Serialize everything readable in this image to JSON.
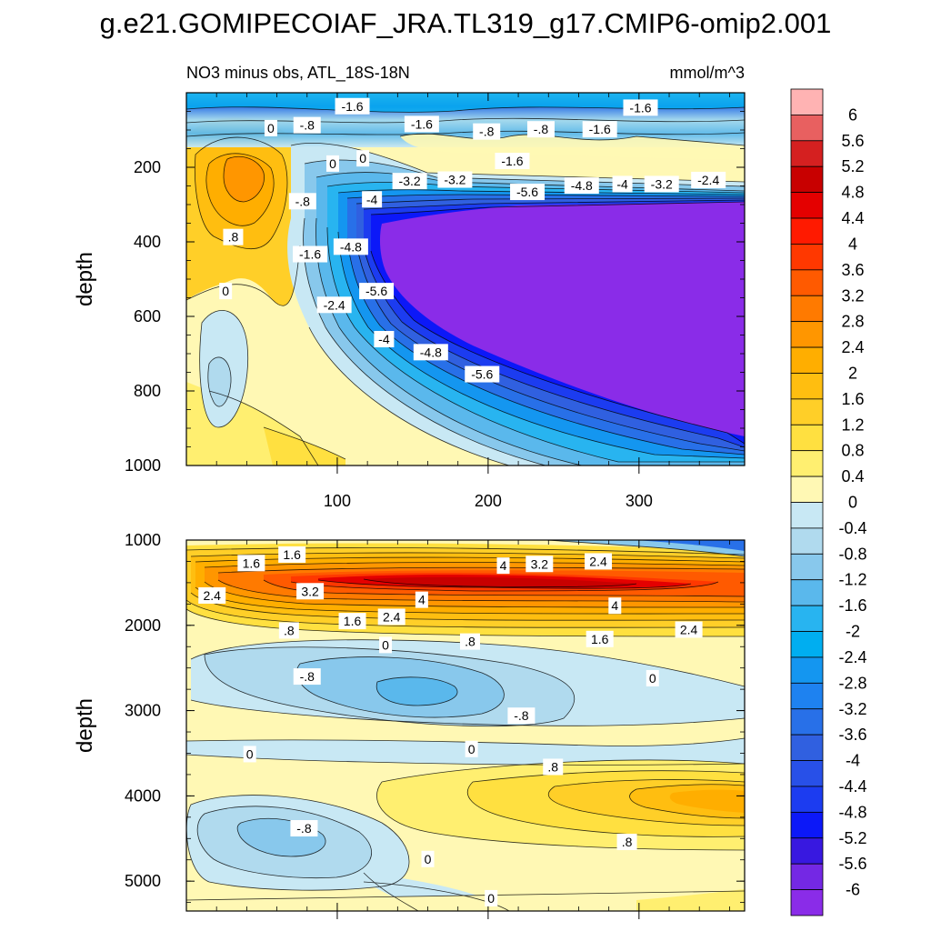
{
  "chart_data": {
    "type": "heatmap",
    "title": "g.e21.GOMIPECOIAF_JRA.TL319_g17.CMIP6-omip2.001",
    "subtitle_left": "NO3 minus obs, ATL_18S-18N",
    "units": "mmol/m^3",
    "colorbar_levels": [
      "6",
      "5.6",
      "5.2",
      "4.8",
      "4.4",
      "4",
      "3.6",
      "3.2",
      "2.8",
      "2.4",
      "2",
      "1.6",
      "1.2",
      "0.8",
      "0.4",
      "0",
      "-0.4",
      "-0.8",
      "-1.2",
      "-1.6",
      "-2",
      "-2.4",
      "-2.8",
      "-3.2",
      "-3.6",
      "-4",
      "-4.4",
      "-4.8",
      "-5.2",
      "-5.6",
      "-6"
    ],
    "colorbar_colors": [
      "#ffb3b3",
      "#e86060",
      "#d52020",
      "#c80000",
      "#e40000",
      "#ff1a00",
      "#ff3800",
      "#ff5a00",
      "#ff7a00",
      "#ff9600",
      "#ffae00",
      "#ffbe10",
      "#ffcf28",
      "#ffe040",
      "#ffef70",
      "#fff8b4",
      "#c8e8f4",
      "#b0daee",
      "#88c8ec",
      "#5ab8ec",
      "#28b4f0",
      "#00aef0",
      "#1496f0",
      "#1e82f0",
      "#2870e8",
      "#3060e0",
      "#2850e8",
      "#1c3cf0",
      "#0c18f8",
      "#3818e0",
      "#7428e4",
      "#8a2ce8"
    ],
    "panels": [
      {
        "name": "upper",
        "xlabel": "",
        "ylabel": "depth",
        "xlim": [
          0,
          370
        ],
        "ylim": [
          1000,
          0
        ],
        "x_ticks": [
          "100",
          "200",
          "300"
        ],
        "y_ticks": [
          "200",
          "400",
          "600",
          "800",
          "1000"
        ],
        "contour_labels": [
          {
            "text": "-1.6",
            "x": 110,
            "y": 36
          },
          {
            "text": "0",
            "x": 56,
            "y": 95
          },
          {
            "text": "-.8",
            "x": 80,
            "y": 87
          },
          {
            "text": "-1.6",
            "x": 156,
            "y": 84
          },
          {
            "text": "-.8",
            "x": 199,
            "y": 104
          },
          {
            "text": "-.8",
            "x": 235,
            "y": 98
          },
          {
            "text": "-1.6",
            "x": 274,
            "y": 98
          },
          {
            "text": "-1.6",
            "x": 301,
            "y": 40
          },
          {
            "text": "-1.6",
            "x": 216,
            "y": 183
          },
          {
            "text": "0",
            "x": 97,
            "y": 190
          },
          {
            "text": "0",
            "x": 117,
            "y": 176
          },
          {
            "text": "-3.2",
            "x": 148,
            "y": 237
          },
          {
            "text": "-3.2",
            "x": 178,
            "y": 233
          },
          {
            "text": "-4",
            "x": 123,
            "y": 286
          },
          {
            "text": "-.8",
            "x": 77,
            "y": 291
          },
          {
            "text": ".8",
            "x": 31,
            "y": 387
          },
          {
            "text": "-4.8",
            "x": 109,
            "y": 413
          },
          {
            "text": "-1.6",
            "x": 82,
            "y": 433
          },
          {
            "text": "-5.6",
            "x": 226,
            "y": 266
          },
          {
            "text": "-4.8",
            "x": 262,
            "y": 249
          },
          {
            "text": "-4",
            "x": 289,
            "y": 245
          },
          {
            "text": "-3.2",
            "x": 315,
            "y": 245
          },
          {
            "text": "-2.4",
            "x": 346,
            "y": 234
          },
          {
            "text": "0",
            "x": 26,
            "y": 532
          },
          {
            "text": "-5.6",
            "x": 126,
            "y": 532
          },
          {
            "text": "-2.4",
            "x": 98,
            "y": 569
          },
          {
            "text": "-4",
            "x": 131,
            "y": 661
          },
          {
            "text": "-4.8",
            "x": 162,
            "y": 696
          },
          {
            "text": "-5.6",
            "x": 196,
            "y": 755
          }
        ]
      },
      {
        "name": "lower",
        "xlabel": "",
        "ylabel": "depth",
        "xlim": [
          0,
          370
        ],
        "ylim": [
          5350,
          1000
        ],
        "x_ticks": [],
        "y_ticks": [
          "1000",
          "2000",
          "3000",
          "4000",
          "5000"
        ],
        "contour_labels": [
          {
            "text": "1.6",
            "x": 43,
            "y": 1270
          },
          {
            "text": "1.6",
            "x": 70,
            "y": 1170
          },
          {
            "text": "4",
            "x": 210,
            "y": 1300
          },
          {
            "text": "3.2",
            "x": 234,
            "y": 1280
          },
          {
            "text": "2.4",
            "x": 273,
            "y": 1250
          },
          {
            "text": "2.4",
            "x": 17,
            "y": 1650
          },
          {
            "text": "3.2",
            "x": 82,
            "y": 1600
          },
          {
            "text": "4",
            "x": 156,
            "y": 1700
          },
          {
            "text": "4",
            "x": 284,
            "y": 1770
          },
          {
            "text": "1.6",
            "x": 110,
            "y": 1950
          },
          {
            "text": "2.4",
            "x": 136,
            "y": 1900
          },
          {
            "text": ".8",
            "x": 68,
            "y": 2060
          },
          {
            "text": "1.6",
            "x": 274,
            "y": 2160
          },
          {
            "text": "2.4",
            "x": 333,
            "y": 2050
          },
          {
            "text": "0",
            "x": 132,
            "y": 2230
          },
          {
            "text": ".8",
            "x": 188,
            "y": 2190
          },
          {
            "text": "0",
            "x": 309,
            "y": 2620
          },
          {
            "text": "-.8",
            "x": 80,
            "y": 2600
          },
          {
            "text": "-.8",
            "x": 222,
            "y": 3060
          },
          {
            "text": "0",
            "x": 42,
            "y": 3510
          },
          {
            "text": "0",
            "x": 189,
            "y": 3450
          },
          {
            "text": ".8",
            "x": 243,
            "y": 3660
          },
          {
            "text": "-.8",
            "x": 78,
            "y": 4380
          },
          {
            "text": ".8",
            "x": 292,
            "y": 4540
          },
          {
            "text": "0",
            "x": 160,
            "y": 4740
          },
          {
            "text": "0",
            "x": 202,
            "y": 5200
          }
        ]
      }
    ]
  }
}
